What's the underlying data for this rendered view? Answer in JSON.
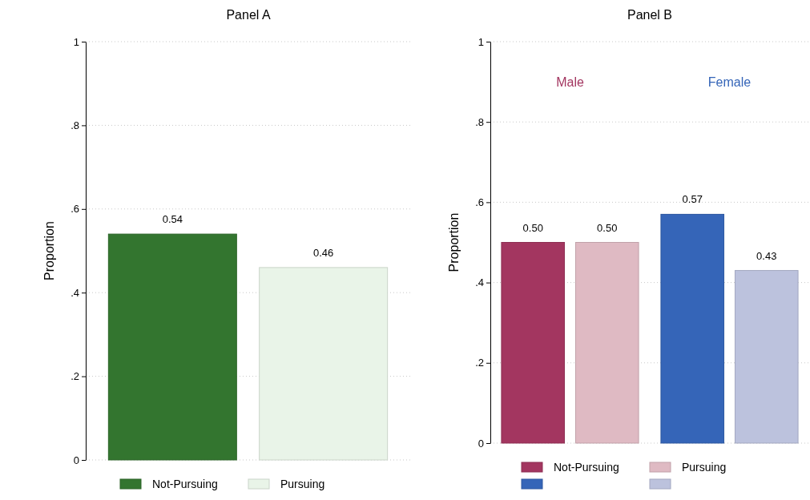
{
  "chart_data": [
    {
      "type": "bar",
      "title": "Panel A",
      "ylabel": "Proportion",
      "categories": [
        null
      ],
      "series": [
        {
          "name": "Not-Pursuing",
          "color": "#33752f",
          "values": [
            0.54
          ],
          "value_labels": [
            "0.54"
          ]
        },
        {
          "name": "Pursuing",
          "color": "#e9f4e8",
          "values": [
            0.46
          ],
          "value_labels": [
            "0.46"
          ]
        }
      ],
      "ylim": [
        0,
        1
      ],
      "yticks": [
        {
          "value": 0,
          "label": "0"
        },
        {
          "value": 0.2,
          "label": ".2"
        },
        {
          "value": 0.4,
          "label": ".4"
        },
        {
          "value": 0.6,
          "label": ".6"
        },
        {
          "value": 0.8,
          "label": ".8"
        },
        {
          "value": 1,
          "label": "1"
        }
      ],
      "grid": "y",
      "legend": "bottom"
    },
    {
      "type": "bar",
      "title": "Panel B",
      "ylabel": "Proportion",
      "categories": [
        "Male",
        "Female"
      ],
      "series": [
        {
          "name": "Not-Pursuing",
          "color": "#a33660",
          "values": [
            0.5,
            null
          ],
          "value_labels": [
            "0.50",
            null
          ]
        },
        {
          "name": "Pursuing",
          "color": "#dfbac3",
          "values": [
            0.5,
            null
          ],
          "value_labels": [
            "0.50",
            null
          ]
        },
        {
          "color": "#3565b8",
          "values": [
            null,
            0.57
          ],
          "value_labels": [
            null,
            "0.57"
          ]
        },
        {
          "color": "#bcc2dd",
          "values": [
            null,
            0.43
          ],
          "value_labels": [
            null,
            "0.43"
          ]
        }
      ],
      "ylim": [
        0,
        1
      ],
      "yticks": [
        {
          "value": 0,
          "label": "0"
        },
        {
          "value": 0.2,
          "label": ".2"
        },
        {
          "value": 0.4,
          "label": ".4"
        },
        {
          "value": 0.6,
          "label": ".6"
        },
        {
          "value": 0.8,
          "label": ".8"
        },
        {
          "value": 1,
          "label": "1"
        }
      ],
      "grid": "y",
      "legend": "bottom"
    }
  ]
}
